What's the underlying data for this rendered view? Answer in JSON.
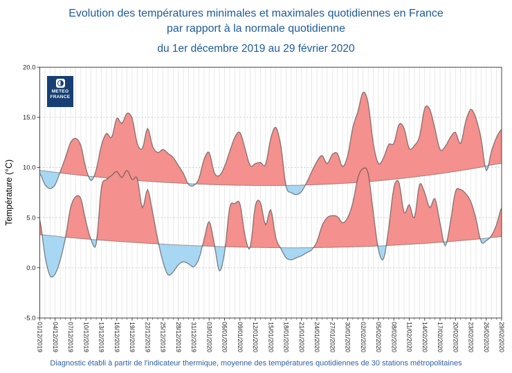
{
  "header": {
    "title_line1": "Evolution des températures minimales et maximales quotidiennes en France",
    "title_line2": "par rapport à la normale quotidienne",
    "subtitle": "du 1er décembre 2019 au 29 février 2020",
    "footer": "Diagnostic établi à partir de l'indicateur thermique, moyenne des températures quotidiennes de 30 stations métropolitaines"
  },
  "logo": {
    "line1": "METEO",
    "line2": "FRANCE",
    "bg_color": "#173f73"
  },
  "chart_data": {
    "type": "area",
    "title": "Evolution des températures minimales et maximales quotidiennes en France par rapport à la normale quotidienne, du 1er décembre 2019 au 29 février 2020",
    "xlabel": "",
    "ylabel": "Température (°C)",
    "ylim": [
      -5.0,
      20.0
    ],
    "y_ticks": [
      20,
      15,
      10,
      5,
      0,
      -5
    ],
    "y_tick_labels": [
      "20.0",
      "15.0",
      "10.0",
      "5.0",
      "0.0",
      "-5.0"
    ],
    "x_tick_step_days": 3,
    "n_days": 91,
    "x_tick_labels": [
      "01/12/2019",
      "04/12/2019",
      "07/12/2019",
      "10/12/2019",
      "13/12/2019",
      "16/12/2019",
      "19/12/2019",
      "22/12/2019",
      "25/12/2019",
      "28/12/2019",
      "31/12/2019",
      "03/01/2020",
      "06/01/2020",
      "09/01/2020",
      "12/01/2020",
      "15/01/2020",
      "18/01/2020",
      "21/01/2020",
      "24/01/2020",
      "27/01/2020",
      "30/01/2020",
      "02/02/2020",
      "05/02/2020",
      "08/02/2020",
      "11/02/2020",
      "14/02/2020",
      "17/02/2020",
      "20/02/2020",
      "23/02/2020",
      "26/02/2020",
      "29/02/2020"
    ],
    "series": {
      "tmax": {
        "name": "température maximale quotidienne",
        "step_days": 1,
        "values": [
          9.4,
          8.3,
          7.9,
          8.3,
          9.6,
          11.0,
          12.5,
          12.9,
          12.2,
          9.9,
          8.7,
          9.8,
          12.2,
          13.4,
          13.0,
          14.9,
          14.4,
          15.4,
          14.9,
          12.4,
          11.9,
          13.9,
          12.1,
          11.5,
          11.8,
          11.4,
          11.0,
          10.2,
          9.4,
          8.3,
          8.2,
          8.9,
          10.8,
          11.5,
          9.5,
          9.2,
          10.1,
          11.6,
          13.0,
          13.5,
          11.9,
          10.2,
          10.4,
          10.5,
          10.3,
          12.9,
          14.0,
          12.1,
          8.1,
          7.5,
          7.3,
          7.6,
          8.5,
          9.6,
          10.6,
          11.2,
          10.4,
          11.3,
          11.4,
          10.1,
          11.2,
          14.0,
          15.6,
          17.5,
          16.4,
          12.4,
          10.4,
          11.0,
          12.3,
          12.4,
          14.3,
          13.9,
          11.9,
          12.2,
          13.1,
          15.9,
          15.8,
          13.9,
          11.8,
          12.1,
          13.0,
          13.5,
          12.4,
          14.6,
          15.8,
          14.9,
          12.9,
          9.7,
          11.6,
          13.0,
          13.8
        ]
      },
      "tmin": {
        "name": "température minimale quotidienne",
        "step_days": 1,
        "values": [
          4.8,
          1.2,
          -0.8,
          -0.6,
          0.8,
          3.0,
          6.0,
          7.1,
          6.9,
          4.6,
          2.8,
          2.4,
          8.0,
          8.8,
          9.2,
          9.6,
          9.0,
          9.7,
          8.8,
          8.9,
          6.0,
          7.8,
          5.5,
          2.8,
          0.6,
          -0.7,
          -0.4,
          0.3,
          0.6,
          0.4,
          0.1,
          0.9,
          2.8,
          4.6,
          2.4,
          -0.3,
          1.5,
          6.0,
          6.4,
          6.4,
          3.2,
          2.0,
          6.2,
          6.5,
          4.3,
          5.8,
          3.0,
          1.9,
          1.0,
          0.8,
          1.0,
          1.2,
          1.5,
          1.8,
          2.6,
          4.2,
          5.0,
          5.2,
          5.1,
          4.5,
          5.0,
          6.5,
          9.0,
          9.9,
          9.4,
          5.5,
          1.8,
          0.9,
          4.0,
          8.0,
          8.5,
          5.5,
          6.3,
          5.0,
          8.3,
          7.5,
          6.0,
          6.9,
          4.5,
          2.2,
          4.5,
          7.6,
          7.8,
          7.4,
          6.6,
          4.9,
          2.6,
          2.7,
          3.2,
          4.3,
          6.0
        ]
      },
      "normal_max": {
        "name": "normale quotidienne des températures maximales",
        "step_days": 5,
        "values": [
          9.7,
          9.39,
          9.11,
          8.87,
          8.66,
          8.5,
          8.37,
          8.27,
          8.22,
          8.2,
          8.23,
          8.31,
          8.44,
          8.63,
          8.88,
          9.18,
          9.53,
          9.94,
          10.4
        ]
      },
      "normal_min": {
        "name": "normale quotidienne des températures minimales",
        "step_days": 5,
        "values": [
          3.3,
          3.05,
          2.83,
          2.64,
          2.47,
          2.33,
          2.21,
          2.12,
          2.05,
          2.01,
          2.0,
          2.02,
          2.07,
          2.15,
          2.28,
          2.43,
          2.62,
          2.84,
          3.1
        ]
      }
    },
    "fill_rule": "red fill where daily temperature is above the normal curve, blue fill where below",
    "legend": "none",
    "grid": {
      "vertical": "one light line per day",
      "horizontal": "dotted lines at 0, 5, 10, 15"
    },
    "colors": {
      "above_normal_fill": "#f4908d",
      "below_normal_fill": "#a8d7f3",
      "temperature_stroke": "rgba(70,70,70,0.65)",
      "normal_stroke": "rgba(70,70,70,0.5)",
      "grid_vertical": "#e3e3e3",
      "grid_horizontal": "#c9c9c9",
      "axis_box": "#444444",
      "tick_text": "#222222",
      "title_text": "#1b5a9b",
      "footer_text": "#2e5fa3"
    }
  }
}
